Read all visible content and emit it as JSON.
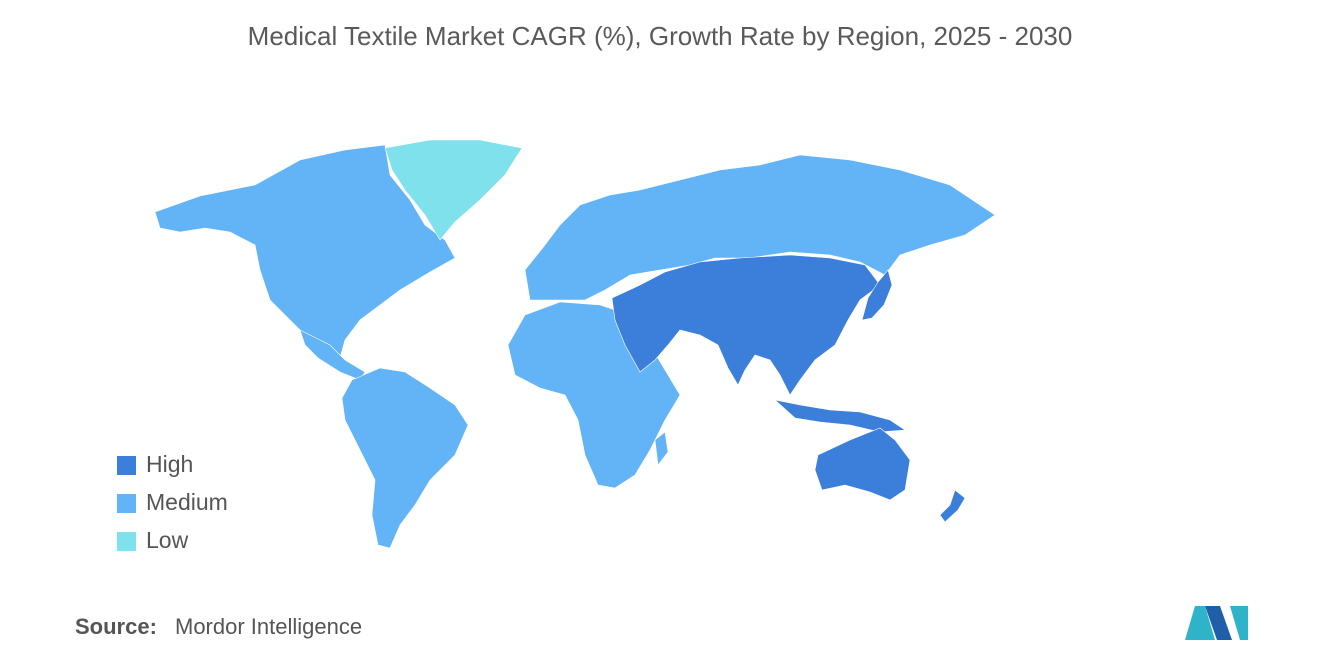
{
  "title": "Medical Textile Market CAGR (%), Growth Rate by Region, 2025 - 2030",
  "legend": [
    {
      "label": "High",
      "color": "#3b7fdb"
    },
    {
      "label": "Medium",
      "color": "#63b4f6"
    },
    {
      "label": "Low",
      "color": "#7fe1ec"
    }
  ],
  "source": {
    "label": "Source:",
    "text": "Mordor Intelligence"
  }
}
